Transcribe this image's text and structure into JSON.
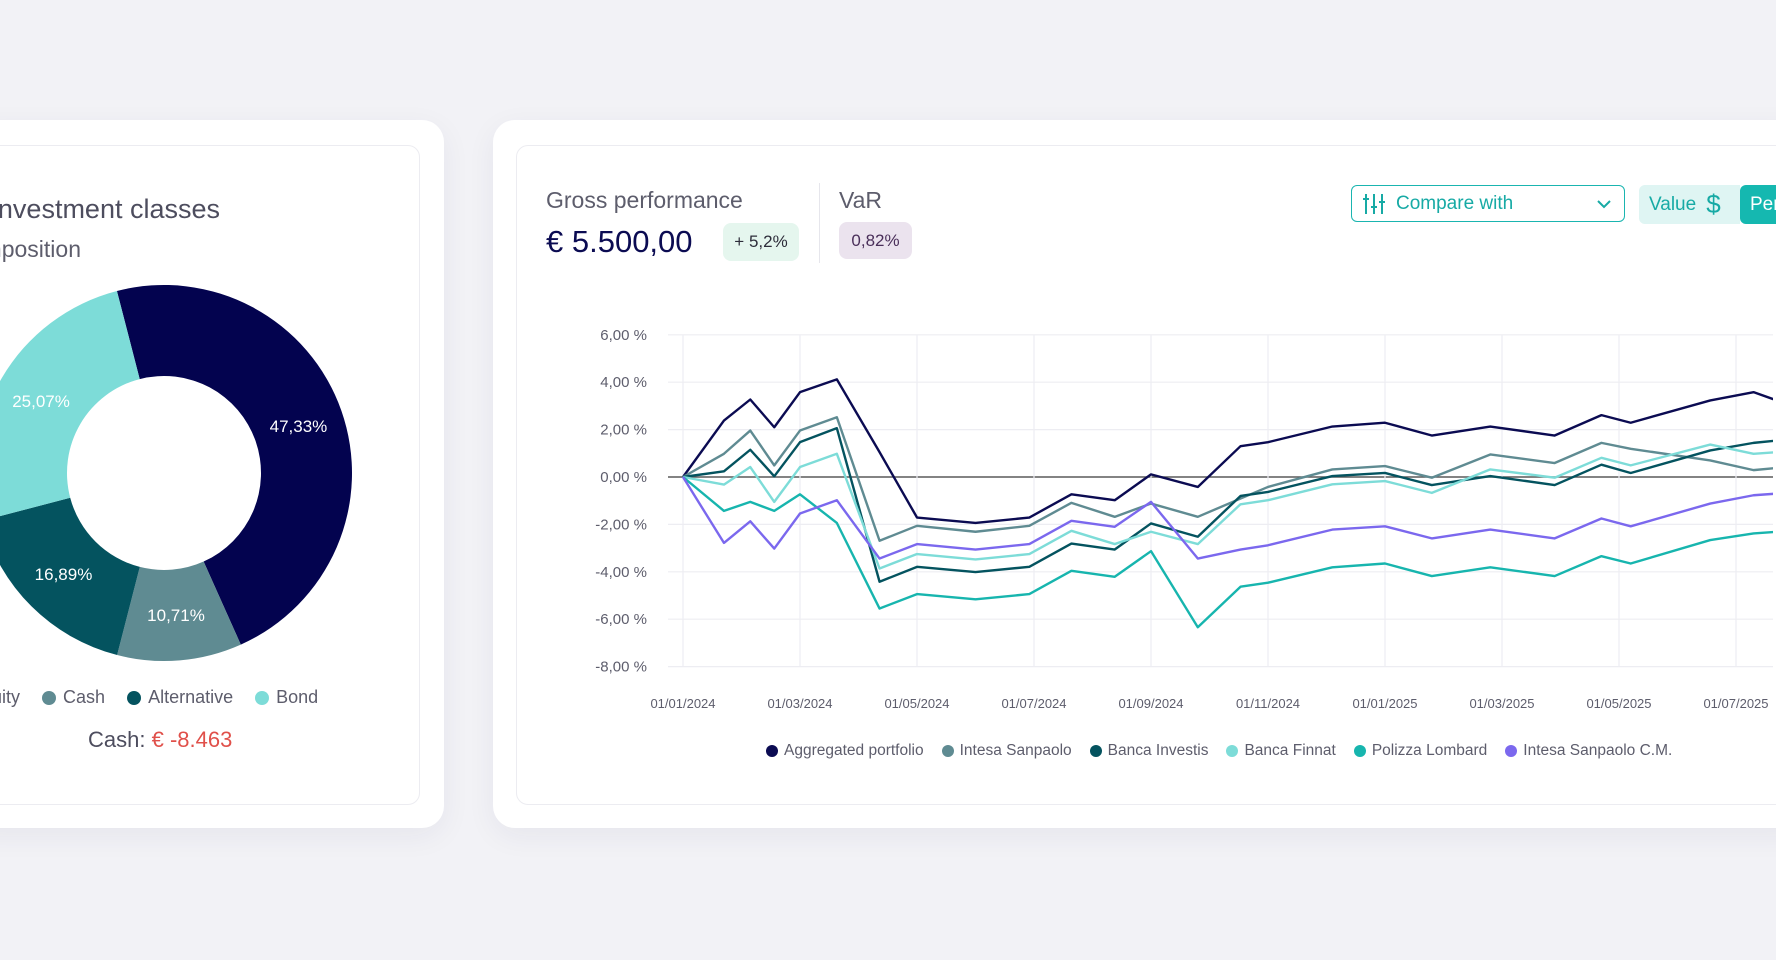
{
  "allocation": {
    "title": "Investment classes",
    "subtitle": "Composition",
    "cash_label": "Cash:",
    "cash_value": "€ -8.463",
    "cash_value_color": "#e0504a"
  },
  "performance": {
    "gross_label": "Gross performance",
    "gross_value": "€ 5.500,00",
    "gross_change": "+ 5,2%",
    "var_label": "VaR",
    "var_value": "0,82%",
    "compare_label": "Compare with",
    "value_label": "Value",
    "percent_label": "Per",
    "compare_icon": "sliders-icon",
    "value_icon": "dollar-icon"
  },
  "chart_data": [
    {
      "type": "pie",
      "title": "Investment classes",
      "subtitle": "Composition",
      "donut": true,
      "slices": [
        {
          "label": "Equity",
          "value": 47.33,
          "text": "47,33%",
          "color": "#03034f"
        },
        {
          "label": "Cash",
          "value": 10.71,
          "text": "10,71%",
          "color": "#5f8b92"
        },
        {
          "label": "Alternative",
          "value": 16.89,
          "text": "16,89%",
          "color": "#04535f"
        },
        {
          "label": "Bond",
          "value": 25.07,
          "text": "25,07%",
          "color": "#7ddcd8"
        }
      ],
      "legend_position": "bottom"
    },
    {
      "type": "line",
      "xlabel": "",
      "ylabel": "",
      "x_unit": "months since 01/01/2024",
      "x": [
        0,
        0.7,
        1.15,
        1.56,
        2,
        2.63,
        3.36,
        4,
        5,
        5.92,
        6.64,
        7.38,
        8,
        8.8,
        9.53,
        10,
        11.1,
        12,
        12.8,
        13.8,
        14.9,
        15.7,
        16.2,
        17.56,
        18.3,
        18.7
      ],
      "xlim": [
        0,
        18.7
      ],
      "ylim": [
        -8,
        6
      ],
      "x_ticks": [
        {
          "m": 0,
          "label": "01/01/2024"
        },
        {
          "m": 2,
          "label": "01/03/2024"
        },
        {
          "m": 4,
          "label": "01/05/2024"
        },
        {
          "m": 6,
          "label": "01/07/2024"
        },
        {
          "m": 8,
          "label": "01/09/2024"
        },
        {
          "m": 10,
          "label": "01/11/2024"
        },
        {
          "m": 12,
          "label": "01/01/2025"
        },
        {
          "m": 14,
          "label": "01/03/2025"
        },
        {
          "m": 16,
          "label": "01/05/2025"
        },
        {
          "m": 18,
          "label": "01/07/2025"
        }
      ],
      "y_ticks": [
        {
          "v": 6,
          "label": "6,00 %"
        },
        {
          "v": 4,
          "label": "4,00 %"
        },
        {
          "v": 2,
          "label": "2,00 %"
        },
        {
          "v": 0,
          "label": "0,00 %"
        },
        {
          "v": -2,
          "label": "-2,00 %"
        },
        {
          "v": -4,
          "label": "-4,00 %"
        },
        {
          "v": -6,
          "label": "-6,00 %"
        },
        {
          "v": -8,
          "label": "-8,00 %"
        }
      ],
      "grid": true,
      "legend_position": "bottom",
      "series": [
        {
          "name": "Aggregated portfolio",
          "color": "#0b0b52",
          "values": [
            0,
            2.38,
            3.27,
            2.1,
            3.58,
            4.12,
            1.05,
            -1.71,
            -1.94,
            -1.71,
            -0.73,
            -0.98,
            0.11,
            -0.42,
            1.3,
            1.47,
            2.13,
            2.29,
            1.75,
            2.13,
            1.75,
            2.61,
            2.29,
            3.23,
            3.58,
            3.23
          ]
        },
        {
          "name": "Intesa Sanpaolo",
          "color": "#5f8b92",
          "values": [
            0,
            0.98,
            1.96,
            0.49,
            1.96,
            2.52,
            -2.69,
            -2.06,
            -2.31,
            -2.06,
            -1.09,
            -1.68,
            -1.12,
            -1.68,
            -0.91,
            -0.42,
            0.32,
            0.46,
            -0.03,
            0.95,
            0.59,
            1.44,
            1.19,
            0.7,
            0.29,
            0.38
          ]
        },
        {
          "name": "Banca Investis",
          "color": "#04535f",
          "values": [
            0,
            0.24,
            1.15,
            0.03,
            1.47,
            2.06,
            -4.42,
            -3.79,
            -4.01,
            -3.79,
            -2.81,
            -3.06,
            -1.96,
            -2.52,
            -0.8,
            -0.63,
            0.04,
            0.17,
            -0.34,
            0.04,
            -0.34,
            0.52,
            0.17,
            1.12,
            1.44,
            1.54
          ]
        },
        {
          "name": "Banca Finnat",
          "color": "#7ddcd8",
          "values": [
            0,
            -0.32,
            0.42,
            -1.05,
            0.42,
            0.98,
            -3.86,
            -3.25,
            -3.48,
            -3.25,
            -2.27,
            -2.83,
            -2.31,
            -2.83,
            -1.15,
            -0.98,
            -0.31,
            -0.17,
            -0.67,
            0.32,
            -0.03,
            0.81,
            0.49,
            1.37,
            0.98,
            1.05
          ]
        },
        {
          "name": "Polizza Lombard",
          "color": "#17b5ae",
          "values": [
            0,
            -1.43,
            -1.05,
            -1.43,
            -0.73,
            -1.94,
            -5.55,
            -4.94,
            -5.16,
            -4.94,
            -3.96,
            -4.21,
            -3.13,
            -6.34,
            -4.63,
            -4.46,
            -3.81,
            -3.65,
            -4.18,
            -3.81,
            -4.18,
            -3.34,
            -3.65,
            -2.66,
            -2.38,
            -2.31
          ]
        },
        {
          "name": "Intesa Sanpaolo C.M.",
          "color": "#7b68ee",
          "values": [
            0,
            -2.78,
            -1.87,
            -3.02,
            -1.54,
            -0.98,
            -3.44,
            -2.83,
            -3.06,
            -2.83,
            -1.85,
            -2.1,
            -1.05,
            -3.44,
            -3.06,
            -2.88,
            -2.22,
            -2.08,
            -2.59,
            -2.22,
            -2.59,
            -1.75,
            -2.08,
            -1.12,
            -0.77,
            -0.7
          ]
        }
      ]
    }
  ]
}
